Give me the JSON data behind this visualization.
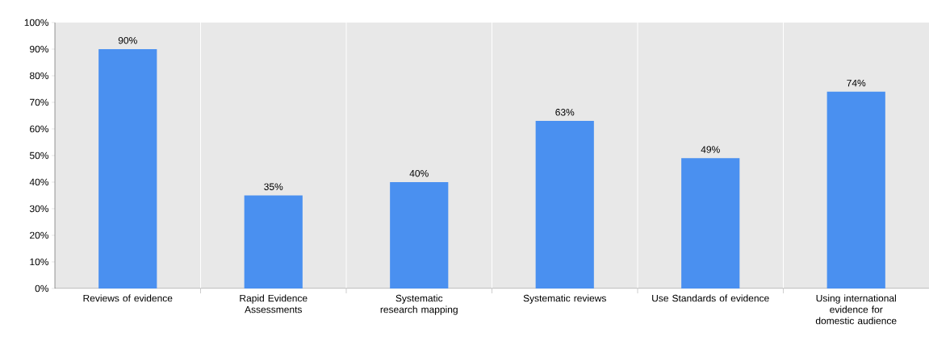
{
  "chart_data": {
    "type": "bar",
    "categories": [
      "Reviews of evidence",
      "Rapid Evidence Assessments",
      "Systematic research mapping",
      "Systematic reviews",
      "Use Standards of evidence",
      "Using international evidence for domestic audience"
    ],
    "values": [
      90,
      35,
      40,
      63,
      49,
      74
    ],
    "value_labels": [
      "90%",
      "35%",
      "40%",
      "63%",
      "49%",
      "74%"
    ],
    "color": "#4a90f0",
    "ylim": [
      0,
      100
    ],
    "yticks": [
      {
        "value": 0,
        "label": "0%"
      },
      {
        "value": 10,
        "label": "10%"
      },
      {
        "value": 20,
        "label": "20%"
      },
      {
        "value": 30,
        "label": "30%"
      },
      {
        "value": 40,
        "label": "40%"
      },
      {
        "value": 50,
        "label": "50%"
      },
      {
        "value": 60,
        "label": "60%"
      },
      {
        "value": 70,
        "label": "70%"
      },
      {
        "value": 80,
        "label": "80%"
      },
      {
        "value": 90,
        "label": "90%"
      },
      {
        "value": 100,
        "label": "100%"
      }
    ],
    "grid": "x"
  }
}
